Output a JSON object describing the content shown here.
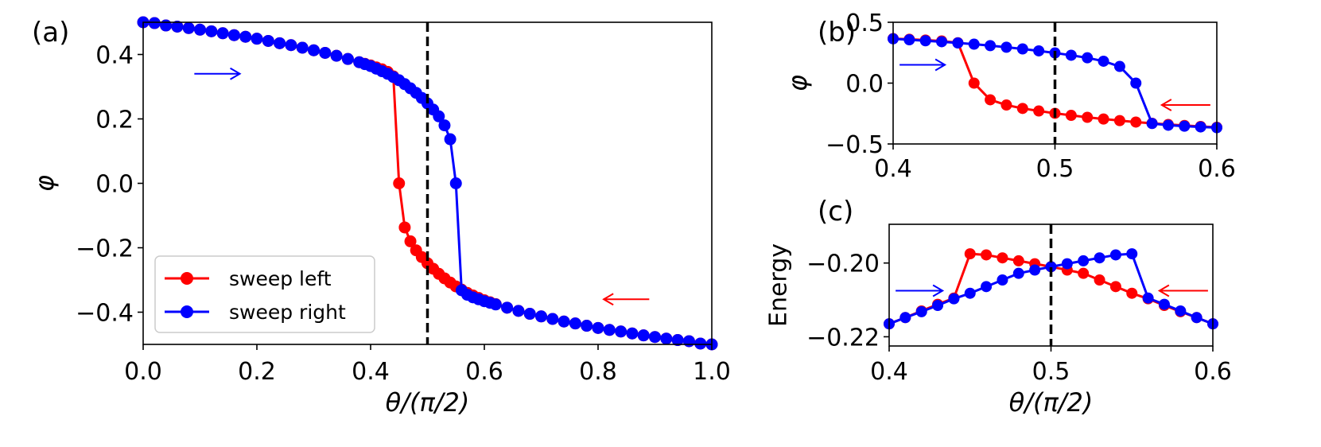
{
  "colors": {
    "red": "#ff0000",
    "blue": "#0000ff",
    "axis": "#000000",
    "background": "#ffffff"
  },
  "legend": {
    "placement": "bottom-left",
    "items": [
      {
        "label": "sweep left",
        "color": "red"
      },
      {
        "label": "sweep right",
        "color": "blue"
      }
    ]
  },
  "chart_data": [
    {
      "panel": "(a)",
      "type": "line",
      "title": "",
      "xlabel": "θ/(π/2)",
      "ylabel": "φ",
      "xlim": [
        0.0,
        1.0
      ],
      "ylim": [
        -0.5,
        0.5
      ],
      "xticks": [
        0.0,
        0.2,
        0.4,
        0.6,
        0.8,
        1.0
      ],
      "xtick_labels": [
        "0.0",
        "0.2",
        "0.4",
        "0.6",
        "0.8",
        "1.0"
      ],
      "yticks": [
        0.4,
        0.2,
        0.0,
        -0.2,
        -0.4
      ],
      "ytick_labels": [
        "0.4",
        "0.2",
        "0.0",
        "−0.2",
        "−0.4"
      ],
      "vline": 0.5,
      "arrows": [
        {
          "series": "sweep right",
          "direction": "right",
          "x": [
            0.09,
            0.17
          ],
          "y": 0.34
        },
        {
          "series": "sweep left",
          "direction": "left",
          "x": [
            0.89,
            0.81
          ],
          "y": -0.36
        }
      ],
      "series": [
        {
          "name": "sweep left",
          "color": "red",
          "points": [
            [
              0.0,
              0.5
            ],
            [
              0.02,
              0.4975
            ],
            [
              0.04,
              0.49
            ],
            [
              0.06,
              0.4865
            ],
            [
              0.08,
              0.482
            ],
            [
              0.1,
              0.477
            ],
            [
              0.12,
              0.472
            ],
            [
              0.14,
              0.466
            ],
            [
              0.16,
              0.46
            ],
            [
              0.18,
              0.455
            ],
            [
              0.2,
              0.449
            ],
            [
              0.22,
              0.442
            ],
            [
              0.24,
              0.435
            ],
            [
              0.26,
              0.429
            ],
            [
              0.28,
              0.421
            ],
            [
              0.3,
              0.413
            ],
            [
              0.32,
              0.405
            ],
            [
              0.34,
              0.396
            ],
            [
              0.36,
              0.386
            ],
            [
              0.38,
              0.376
            ],
            [
              0.39,
              0.371
            ],
            [
              0.4,
              0.366
            ],
            [
              0.41,
              0.36
            ],
            [
              0.42,
              0.354
            ],
            [
              0.43,
              0.346
            ],
            [
              0.44,
              0.332
            ],
            [
              0.45,
              0.0
            ],
            [
              0.46,
              -0.137
            ],
            [
              0.47,
              -0.18
            ],
            [
              0.48,
              -0.208
            ],
            [
              0.49,
              -0.229
            ],
            [
              0.5,
              -0.248
            ],
            [
              0.51,
              -0.265
            ],
            [
              0.52,
              -0.281
            ],
            [
              0.53,
              -0.295
            ],
            [
              0.54,
              -0.308
            ],
            [
              0.55,
              -0.32
            ],
            [
              0.56,
              -0.33
            ],
            [
              0.57,
              -0.34
            ],
            [
              0.58,
              -0.348
            ],
            [
              0.59,
              -0.356
            ],
            [
              0.6,
              -0.363
            ],
            [
              0.61,
              -0.369
            ],
            [
              0.62,
              -0.375
            ],
            [
              0.64,
              -0.386
            ],
            [
              0.66,
              -0.396
            ],
            [
              0.68,
              -0.405
            ],
            [
              0.7,
              -0.413
            ],
            [
              0.72,
              -0.421
            ],
            [
              0.74,
              -0.429
            ],
            [
              0.76,
              -0.435
            ],
            [
              0.78,
              -0.442
            ],
            [
              0.8,
              -0.449
            ],
            [
              0.82,
              -0.455
            ],
            [
              0.84,
              -0.46
            ],
            [
              0.86,
              -0.466
            ],
            [
              0.88,
              -0.472
            ],
            [
              0.9,
              -0.477
            ],
            [
              0.92,
              -0.482
            ],
            [
              0.94,
              -0.4865
            ],
            [
              0.96,
              -0.49
            ],
            [
              0.98,
              -0.4975
            ],
            [
              1.0,
              -0.5
            ]
          ]
        },
        {
          "name": "sweep right",
          "color": "blue",
          "points": [
            [
              0.0,
              0.5
            ],
            [
              0.02,
              0.4975
            ],
            [
              0.04,
              0.49
            ],
            [
              0.06,
              0.4865
            ],
            [
              0.08,
              0.482
            ],
            [
              0.1,
              0.477
            ],
            [
              0.12,
              0.472
            ],
            [
              0.14,
              0.466
            ],
            [
              0.16,
              0.46
            ],
            [
              0.18,
              0.455
            ],
            [
              0.2,
              0.449
            ],
            [
              0.22,
              0.442
            ],
            [
              0.24,
              0.435
            ],
            [
              0.26,
              0.429
            ],
            [
              0.28,
              0.421
            ],
            [
              0.3,
              0.413
            ],
            [
              0.32,
              0.405
            ],
            [
              0.34,
              0.396
            ],
            [
              0.36,
              0.386
            ],
            [
              0.38,
              0.376
            ],
            [
              0.39,
              0.37
            ],
            [
              0.4,
              0.364
            ],
            [
              0.41,
              0.356
            ],
            [
              0.42,
              0.348
            ],
            [
              0.43,
              0.34
            ],
            [
              0.44,
              0.33
            ],
            [
              0.45,
              0.32
            ],
            [
              0.46,
              0.308
            ],
            [
              0.47,
              0.295
            ],
            [
              0.48,
              0.281
            ],
            [
              0.49,
              0.265
            ],
            [
              0.5,
              0.248
            ],
            [
              0.51,
              0.229
            ],
            [
              0.52,
              0.208
            ],
            [
              0.53,
              0.18
            ],
            [
              0.54,
              0.137
            ],
            [
              0.55,
              0.0
            ],
            [
              0.56,
              -0.332
            ],
            [
              0.57,
              -0.346
            ],
            [
              0.58,
              -0.354
            ],
            [
              0.59,
              -0.36
            ],
            [
              0.6,
              -0.366
            ],
            [
              0.61,
              -0.371
            ],
            [
              0.62,
              -0.376
            ],
            [
              0.64,
              -0.386
            ],
            [
              0.66,
              -0.396
            ],
            [
              0.68,
              -0.405
            ],
            [
              0.7,
              -0.413
            ],
            [
              0.72,
              -0.421
            ],
            [
              0.74,
              -0.429
            ],
            [
              0.76,
              -0.435
            ],
            [
              0.78,
              -0.442
            ],
            [
              0.8,
              -0.449
            ],
            [
              0.82,
              -0.455
            ],
            [
              0.84,
              -0.46
            ],
            [
              0.86,
              -0.466
            ],
            [
              0.88,
              -0.472
            ],
            [
              0.9,
              -0.477
            ],
            [
              0.92,
              -0.482
            ],
            [
              0.94,
              -0.4865
            ],
            [
              0.96,
              -0.49
            ],
            [
              0.98,
              -0.4975
            ],
            [
              1.0,
              -0.5
            ]
          ]
        }
      ]
    },
    {
      "panel": "(b)",
      "type": "line",
      "title": "",
      "xlabel": "",
      "ylabel": "φ",
      "xlim": [
        0.4,
        0.6
      ],
      "ylim": [
        -0.5,
        0.5
      ],
      "xticks": [
        0.4,
        0.5,
        0.6
      ],
      "xtick_labels": [
        "0.4",
        "0.5",
        "0.6"
      ],
      "yticks": [
        0.5,
        0.0,
        -0.5
      ],
      "ytick_labels": [
        "0.5",
        "0.0",
        "−0.5"
      ],
      "vline": 0.5,
      "arrows": [
        {
          "series": "sweep right",
          "direction": "right",
          "x": [
            0.404,
            0.432
          ],
          "y": 0.15
        },
        {
          "series": "sweep left",
          "direction": "left",
          "x": [
            0.596,
            0.566
          ],
          "y": -0.18
        }
      ],
      "series": [
        {
          "name": "sweep left",
          "color": "red",
          "points": [
            [
              0.4,
              0.366
            ],
            [
              0.41,
              0.36
            ],
            [
              0.42,
              0.354
            ],
            [
              0.43,
              0.346
            ],
            [
              0.44,
              0.332
            ],
            [
              0.45,
              0.0
            ],
            [
              0.46,
              -0.137
            ],
            [
              0.47,
              -0.18
            ],
            [
              0.48,
              -0.208
            ],
            [
              0.49,
              -0.229
            ],
            [
              0.5,
              -0.248
            ],
            [
              0.51,
              -0.265
            ],
            [
              0.52,
              -0.281
            ],
            [
              0.53,
              -0.295
            ],
            [
              0.54,
              -0.308
            ],
            [
              0.55,
              -0.32
            ],
            [
              0.56,
              -0.33
            ],
            [
              0.57,
              -0.34
            ],
            [
              0.58,
              -0.348
            ],
            [
              0.59,
              -0.356
            ],
            [
              0.6,
              -0.363
            ]
          ]
        },
        {
          "name": "sweep right",
          "color": "blue",
          "points": [
            [
              0.4,
              0.364
            ],
            [
              0.41,
              0.356
            ],
            [
              0.42,
              0.348
            ],
            [
              0.43,
              0.34
            ],
            [
              0.44,
              0.33
            ],
            [
              0.45,
              0.32
            ],
            [
              0.46,
              0.308
            ],
            [
              0.47,
              0.295
            ],
            [
              0.48,
              0.281
            ],
            [
              0.49,
              0.265
            ],
            [
              0.5,
              0.248
            ],
            [
              0.51,
              0.229
            ],
            [
              0.52,
              0.208
            ],
            [
              0.53,
              0.18
            ],
            [
              0.54,
              0.137
            ],
            [
              0.55,
              0.0
            ],
            [
              0.56,
              -0.332
            ],
            [
              0.57,
              -0.346
            ],
            [
              0.58,
              -0.354
            ],
            [
              0.59,
              -0.36
            ],
            [
              0.6,
              -0.366
            ]
          ]
        }
      ]
    },
    {
      "panel": "(c)",
      "type": "line",
      "title": "",
      "xlabel": "θ/(π/2)",
      "ylabel": "Energy",
      "xlim": [
        0.4,
        0.6
      ],
      "ylim": [
        -0.2225,
        -0.1895
      ],
      "xticks": [
        0.4,
        0.5,
        0.6
      ],
      "xtick_labels": [
        "0.4",
        "0.5",
        "0.6"
      ],
      "yticks": [
        -0.2,
        -0.22
      ],
      "ytick_labels": [
        "−0.20",
        "−0.22"
      ],
      "vline": 0.5,
      "arrows": [
        {
          "series": "sweep right",
          "direction": "right",
          "x": [
            0.404,
            0.433
          ],
          "y": -0.2075
        },
        {
          "series": "sweep left",
          "direction": "left",
          "x": [
            0.597,
            0.567
          ],
          "y": -0.2075
        }
      ],
      "series": [
        {
          "name": "sweep left",
          "color": "red",
          "points": [
            [
              0.4,
              -0.2165
            ],
            [
              0.41,
              -0.2148
            ],
            [
              0.42,
              -0.213
            ],
            [
              0.43,
              -0.2112
            ],
            [
              0.44,
              -0.2095
            ],
            [
              0.45,
              -0.1975
            ],
            [
              0.46,
              -0.1978
            ],
            [
              0.47,
              -0.1986
            ],
            [
              0.48,
              -0.1994
            ],
            [
              0.49,
              -0.2002
            ],
            [
              0.5,
              -0.201
            ],
            [
              0.51,
              -0.2019
            ],
            [
              0.52,
              -0.2028
            ],
            [
              0.53,
              -0.2046
            ],
            [
              0.54,
              -0.2064
            ],
            [
              0.55,
              -0.2082
            ],
            [
              0.56,
              -0.2097
            ],
            [
              0.57,
              -0.2115
            ],
            [
              0.58,
              -0.2132
            ],
            [
              0.59,
              -0.2148
            ],
            [
              0.6,
              -0.2165
            ]
          ]
        },
        {
          "name": "sweep right",
          "color": "blue",
          "points": [
            [
              0.4,
              -0.2165
            ],
            [
              0.41,
              -0.2148
            ],
            [
              0.42,
              -0.2132
            ],
            [
              0.43,
              -0.2115
            ],
            [
              0.44,
              -0.2097
            ],
            [
              0.45,
              -0.2082
            ],
            [
              0.46,
              -0.2064
            ],
            [
              0.47,
              -0.2046
            ],
            [
              0.48,
              -0.2028
            ],
            [
              0.49,
              -0.2019
            ],
            [
              0.5,
              -0.201
            ],
            [
              0.51,
              -0.2002
            ],
            [
              0.52,
              -0.1994
            ],
            [
              0.53,
              -0.1986
            ],
            [
              0.54,
              -0.1978
            ],
            [
              0.55,
              -0.1975
            ],
            [
              0.56,
              -0.2095
            ],
            [
              0.57,
              -0.2112
            ],
            [
              0.58,
              -0.213
            ],
            [
              0.59,
              -0.2148
            ],
            [
              0.6,
              -0.2165
            ]
          ]
        }
      ]
    }
  ]
}
